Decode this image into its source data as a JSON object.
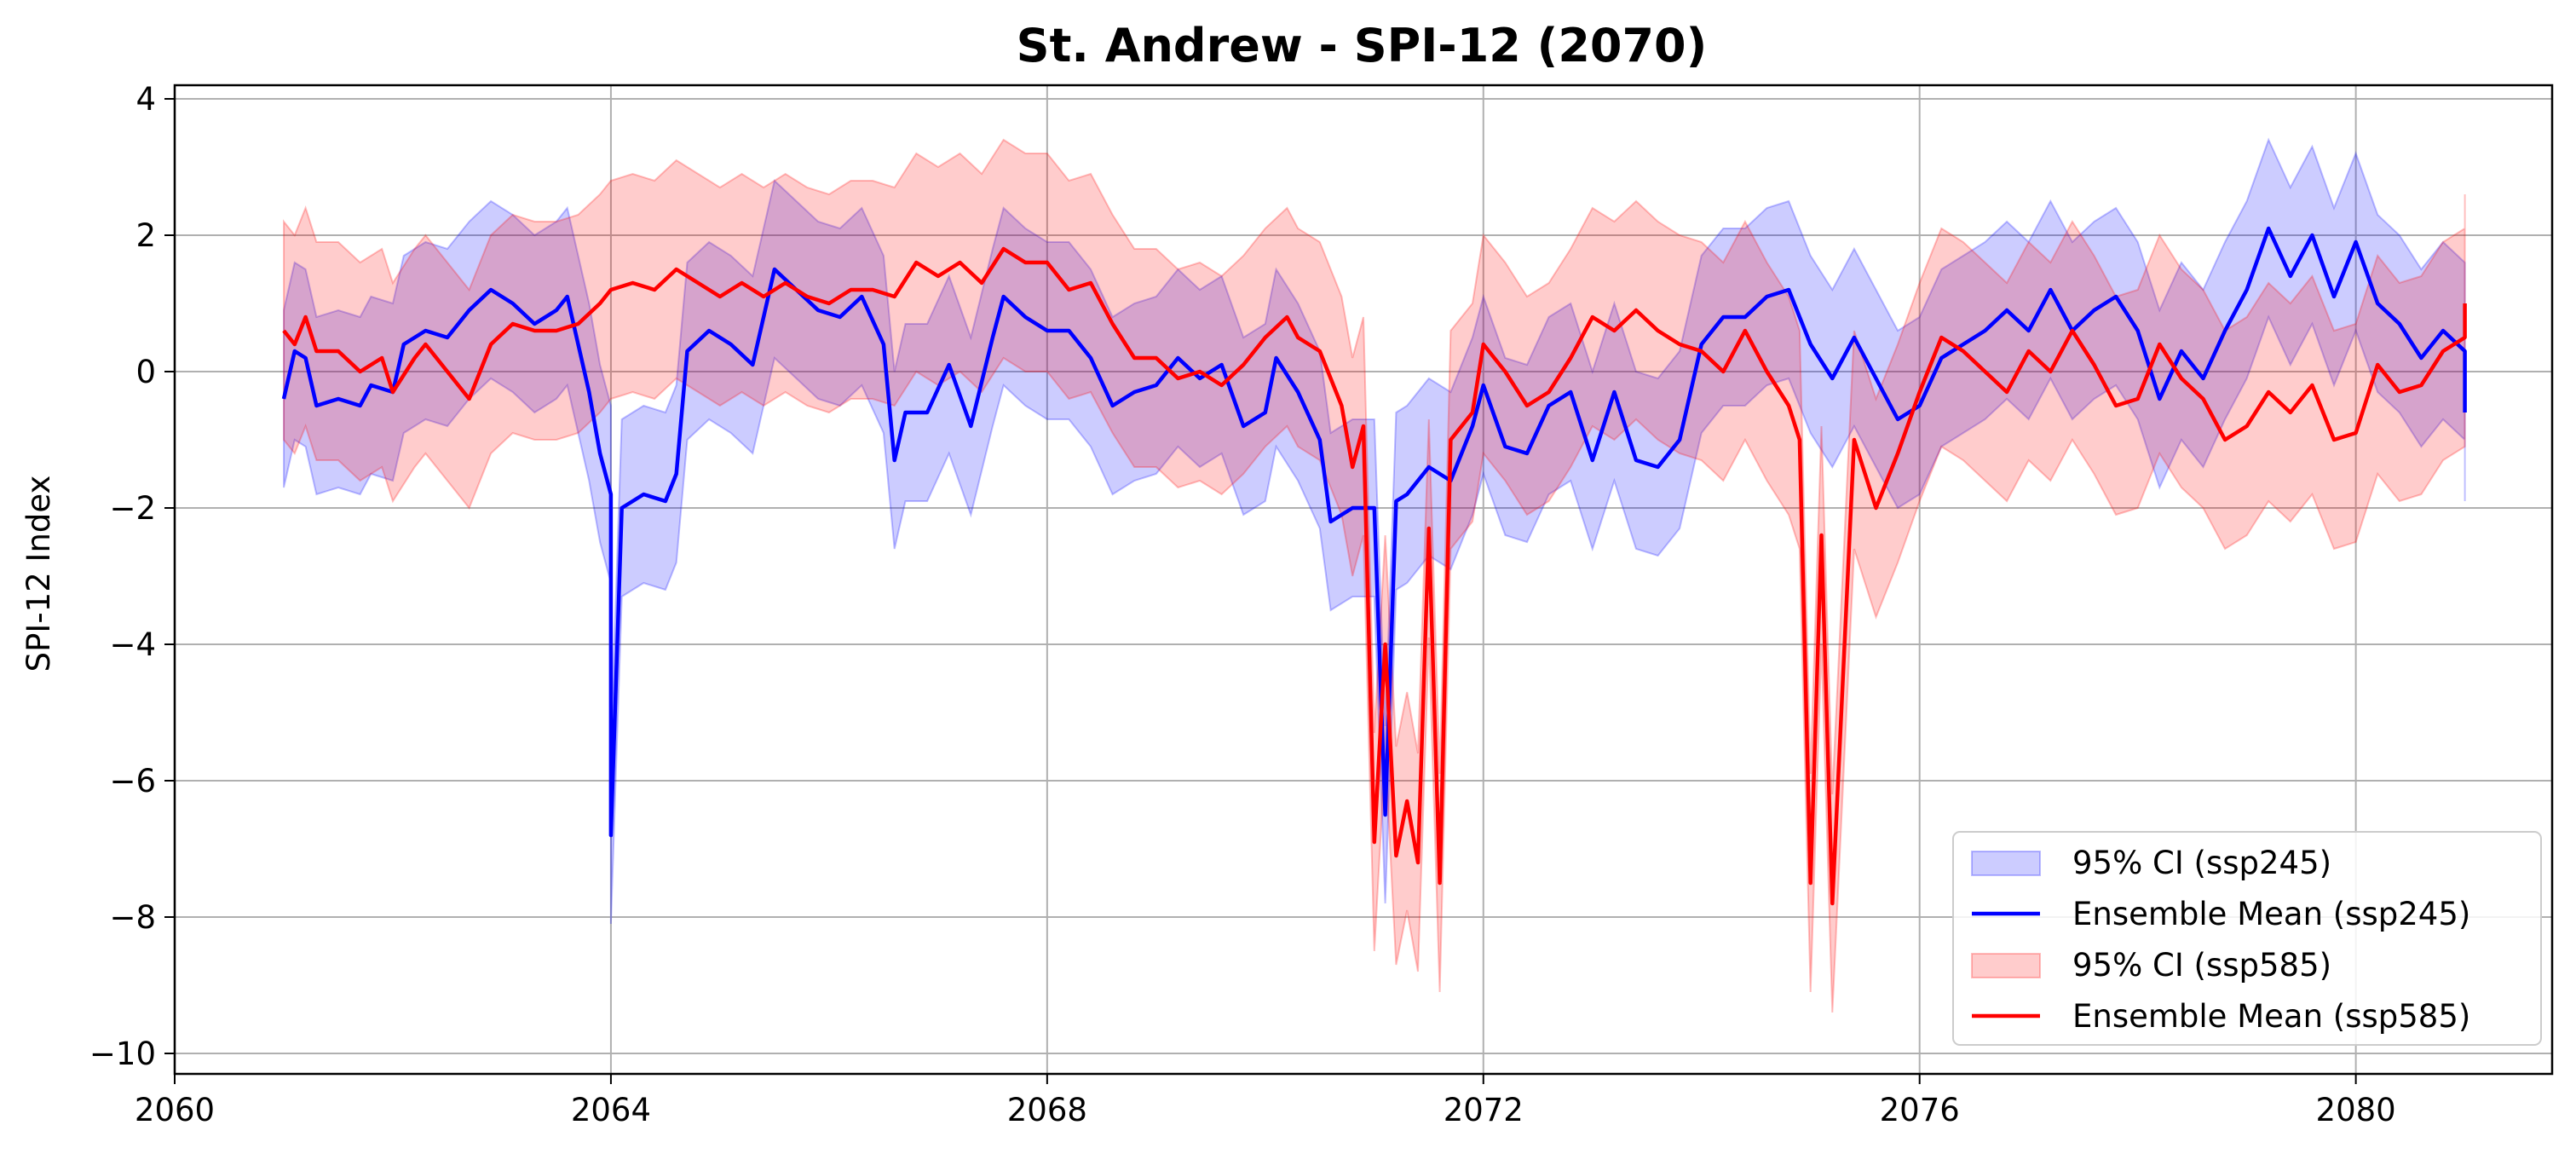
{
  "chart_data": {
    "type": "line",
    "title": "St. Andrew - SPI-12 (2070)",
    "xlabel": "",
    "ylabel": "SPI-12 Index",
    "xlim": [
      2060.0,
      2081.8
    ],
    "ylim": [
      -10.3,
      4.2
    ],
    "x_ticks": [
      2060,
      2064,
      2068,
      2072,
      2076,
      2080
    ],
    "x_tick_labels": [
      "2060",
      "2064",
      "2068",
      "2072",
      "2076",
      "2080"
    ],
    "y_ticks": [
      4,
      2,
      0,
      -2,
      -4,
      -6,
      -8,
      -10
    ],
    "y_tick_labels": [
      "4",
      "2",
      "0",
      "−2",
      "−4",
      "−6",
      "−8",
      "−10"
    ],
    "grid": true,
    "legend_position": "lower right",
    "series": [
      {
        "name": "Ensemble Mean (ssp245)",
        "color": "#0000ff",
        "ci_name": "95% CI (ssp245)",
        "ci_color": "#0000ff",
        "ci_width": 1.3,
        "points": [
          [
            2061.0,
            -0.4
          ],
          [
            2061.1,
            0.3
          ],
          [
            2061.2,
            0.2
          ],
          [
            2061.3,
            -0.5
          ],
          [
            2061.5,
            -0.4
          ],
          [
            2061.7,
            -0.5
          ],
          [
            2061.8,
            -0.2
          ],
          [
            2062.0,
            -0.3
          ],
          [
            2062.1,
            0.4
          ],
          [
            2062.3,
            0.6
          ],
          [
            2062.5,
            0.5
          ],
          [
            2062.7,
            0.9
          ],
          [
            2062.9,
            1.2
          ],
          [
            2063.1,
            1.0
          ],
          [
            2063.3,
            0.7
          ],
          [
            2063.5,
            0.9
          ],
          [
            2063.6,
            1.1
          ],
          [
            2063.7,
            0.4
          ],
          [
            2063.8,
            -0.3
          ],
          [
            2063.9,
            -1.2
          ],
          [
            2064.0,
            -1.8
          ],
          [
            2064.0,
            -6.8
          ],
          [
            2064.1,
            -2.0
          ],
          [
            2064.3,
            -1.8
          ],
          [
            2064.5,
            -1.9
          ],
          [
            2064.6,
            -1.5
          ],
          [
            2064.7,
            0.3
          ],
          [
            2064.9,
            0.6
          ],
          [
            2065.1,
            0.4
          ],
          [
            2065.3,
            0.1
          ],
          [
            2065.5,
            1.5
          ],
          [
            2065.7,
            1.2
          ],
          [
            2065.9,
            0.9
          ],
          [
            2066.1,
            0.8
          ],
          [
            2066.3,
            1.1
          ],
          [
            2066.5,
            0.4
          ],
          [
            2066.6,
            -1.3
          ],
          [
            2066.7,
            -0.6
          ],
          [
            2066.9,
            -0.6
          ],
          [
            2067.1,
            0.1
          ],
          [
            2067.3,
            -0.8
          ],
          [
            2067.5,
            0.5
          ],
          [
            2067.6,
            1.1
          ],
          [
            2067.8,
            0.8
          ],
          [
            2068.0,
            0.6
          ],
          [
            2068.2,
            0.6
          ],
          [
            2068.4,
            0.2
          ],
          [
            2068.6,
            -0.5
          ],
          [
            2068.8,
            -0.3
          ],
          [
            2069.0,
            -0.2
          ],
          [
            2069.2,
            0.2
          ],
          [
            2069.4,
            -0.1
          ],
          [
            2069.6,
            0.1
          ],
          [
            2069.8,
            -0.8
          ],
          [
            2070.0,
            -0.6
          ],
          [
            2070.1,
            0.2
          ],
          [
            2070.3,
            -0.3
          ],
          [
            2070.5,
            -1.0
          ],
          [
            2070.6,
            -2.2
          ],
          [
            2070.8,
            -2.0
          ],
          [
            2070.9,
            -2.0
          ],
          [
            2071.0,
            -2.0
          ],
          [
            2071.1,
            -6.5
          ],
          [
            2071.2,
            -1.9
          ],
          [
            2071.3,
            -1.8
          ],
          [
            2071.5,
            -1.4
          ],
          [
            2071.7,
            -1.6
          ],
          [
            2071.9,
            -0.8
          ],
          [
            2072.0,
            -0.2
          ],
          [
            2072.2,
            -1.1
          ],
          [
            2072.4,
            -1.2
          ],
          [
            2072.6,
            -0.5
          ],
          [
            2072.8,
            -0.3
          ],
          [
            2073.0,
            -1.3
          ],
          [
            2073.2,
            -0.3
          ],
          [
            2073.4,
            -1.3
          ],
          [
            2073.6,
            -1.4
          ],
          [
            2073.8,
            -1.0
          ],
          [
            2074.0,
            0.4
          ],
          [
            2074.2,
            0.8
          ],
          [
            2074.4,
            0.8
          ],
          [
            2074.6,
            1.1
          ],
          [
            2074.8,
            1.2
          ],
          [
            2075.0,
            0.4
          ],
          [
            2075.2,
            -0.1
          ],
          [
            2075.4,
            0.5
          ],
          [
            2075.6,
            -0.1
          ],
          [
            2075.8,
            -0.7
          ],
          [
            2076.0,
            -0.5
          ],
          [
            2076.2,
            0.2
          ],
          [
            2076.4,
            0.4
          ],
          [
            2076.6,
            0.6
          ],
          [
            2076.8,
            0.9
          ],
          [
            2077.0,
            0.6
          ],
          [
            2077.2,
            1.2
          ],
          [
            2077.4,
            0.6
          ],
          [
            2077.6,
            0.9
          ],
          [
            2077.8,
            1.1
          ],
          [
            2078.0,
            0.6
          ],
          [
            2078.2,
            -0.4
          ],
          [
            2078.4,
            0.3
          ],
          [
            2078.6,
            -0.1
          ],
          [
            2078.8,
            0.6
          ],
          [
            2079.0,
            1.2
          ],
          [
            2079.2,
            2.1
          ],
          [
            2079.4,
            1.4
          ],
          [
            2079.6,
            2.0
          ],
          [
            2079.8,
            1.1
          ],
          [
            2080.0,
            1.9
          ],
          [
            2080.2,
            1.0
          ],
          [
            2080.4,
            0.7
          ],
          [
            2080.6,
            0.2
          ],
          [
            2080.8,
            0.6
          ],
          [
            2081.0,
            0.3
          ],
          [
            2081.0,
            -0.6
          ]
        ]
      },
      {
        "name": "Ensemble Mean (ssp585)",
        "color": "#ff0000",
        "ci_name": "95% CI (ssp585)",
        "ci_color": "#ff0000",
        "ci_width": 1.6,
        "points": [
          [
            2061.0,
            0.6
          ],
          [
            2061.1,
            0.4
          ],
          [
            2061.2,
            0.8
          ],
          [
            2061.3,
            0.3
          ],
          [
            2061.5,
            0.3
          ],
          [
            2061.7,
            0.0
          ],
          [
            2061.9,
            0.2
          ],
          [
            2062.0,
            -0.3
          ],
          [
            2062.2,
            0.2
          ],
          [
            2062.3,
            0.4
          ],
          [
            2062.5,
            0.0
          ],
          [
            2062.7,
            -0.4
          ],
          [
            2062.9,
            0.4
          ],
          [
            2063.1,
            0.7
          ],
          [
            2063.3,
            0.6
          ],
          [
            2063.5,
            0.6
          ],
          [
            2063.7,
            0.7
          ],
          [
            2063.9,
            1.0
          ],
          [
            2064.0,
            1.2
          ],
          [
            2064.2,
            1.3
          ],
          [
            2064.4,
            1.2
          ],
          [
            2064.6,
            1.5
          ],
          [
            2064.8,
            1.3
          ],
          [
            2065.0,
            1.1
          ],
          [
            2065.2,
            1.3
          ],
          [
            2065.4,
            1.1
          ],
          [
            2065.6,
            1.3
          ],
          [
            2065.8,
            1.1
          ],
          [
            2066.0,
            1.0
          ],
          [
            2066.2,
            1.2
          ],
          [
            2066.4,
            1.2
          ],
          [
            2066.6,
            1.1
          ],
          [
            2066.8,
            1.6
          ],
          [
            2067.0,
            1.4
          ],
          [
            2067.2,
            1.6
          ],
          [
            2067.4,
            1.3
          ],
          [
            2067.6,
            1.8
          ],
          [
            2067.8,
            1.6
          ],
          [
            2068.0,
            1.6
          ],
          [
            2068.2,
            1.2
          ],
          [
            2068.4,
            1.3
          ],
          [
            2068.6,
            0.7
          ],
          [
            2068.8,
            0.2
          ],
          [
            2069.0,
            0.2
          ],
          [
            2069.2,
            -0.1
          ],
          [
            2069.4,
            0.0
          ],
          [
            2069.6,
            -0.2
          ],
          [
            2069.8,
            0.1
          ],
          [
            2070.0,
            0.5
          ],
          [
            2070.2,
            0.8
          ],
          [
            2070.3,
            0.5
          ],
          [
            2070.5,
            0.3
          ],
          [
            2070.7,
            -0.5
          ],
          [
            2070.8,
            -1.4
          ],
          [
            2070.9,
            -0.8
          ],
          [
            2071.0,
            -6.9
          ],
          [
            2071.1,
            -4.0
          ],
          [
            2071.2,
            -7.1
          ],
          [
            2071.3,
            -6.3
          ],
          [
            2071.4,
            -7.2
          ],
          [
            2071.5,
            -2.3
          ],
          [
            2071.6,
            -7.5
          ],
          [
            2071.7,
            -1.0
          ],
          [
            2071.9,
            -0.6
          ],
          [
            2072.0,
            0.4
          ],
          [
            2072.2,
            0.0
          ],
          [
            2072.4,
            -0.5
          ],
          [
            2072.6,
            -0.3
          ],
          [
            2072.8,
            0.2
          ],
          [
            2073.0,
            0.8
          ],
          [
            2073.2,
            0.6
          ],
          [
            2073.4,
            0.9
          ],
          [
            2073.6,
            0.6
          ],
          [
            2073.8,
            0.4
          ],
          [
            2074.0,
            0.3
          ],
          [
            2074.2,
            0.0
          ],
          [
            2074.4,
            0.6
          ],
          [
            2074.6,
            0.0
          ],
          [
            2074.8,
            -0.5
          ],
          [
            2074.9,
            -1.0
          ],
          [
            2075.0,
            -7.5
          ],
          [
            2075.1,
            -2.4
          ],
          [
            2075.2,
            -7.8
          ],
          [
            2075.4,
            -1.0
          ],
          [
            2075.6,
            -2.0
          ],
          [
            2075.8,
            -1.2
          ],
          [
            2076.0,
            -0.3
          ],
          [
            2076.2,
            0.5
          ],
          [
            2076.4,
            0.3
          ],
          [
            2076.6,
            0.0
          ],
          [
            2076.8,
            -0.3
          ],
          [
            2077.0,
            0.3
          ],
          [
            2077.2,
            0.0
          ],
          [
            2077.4,
            0.6
          ],
          [
            2077.6,
            0.1
          ],
          [
            2077.8,
            -0.5
          ],
          [
            2078.0,
            -0.4
          ],
          [
            2078.2,
            0.4
          ],
          [
            2078.4,
            -0.1
          ],
          [
            2078.6,
            -0.4
          ],
          [
            2078.8,
            -1.0
          ],
          [
            2079.0,
            -0.8
          ],
          [
            2079.2,
            -0.3
          ],
          [
            2079.4,
            -0.6
          ],
          [
            2079.6,
            -0.2
          ],
          [
            2079.8,
            -1.0
          ],
          [
            2080.0,
            -0.9
          ],
          [
            2080.2,
            0.1
          ],
          [
            2080.4,
            -0.3
          ],
          [
            2080.6,
            -0.2
          ],
          [
            2080.8,
            0.3
          ],
          [
            2081.0,
            0.5
          ],
          [
            2081.0,
            1.0
          ]
        ]
      }
    ]
  }
}
